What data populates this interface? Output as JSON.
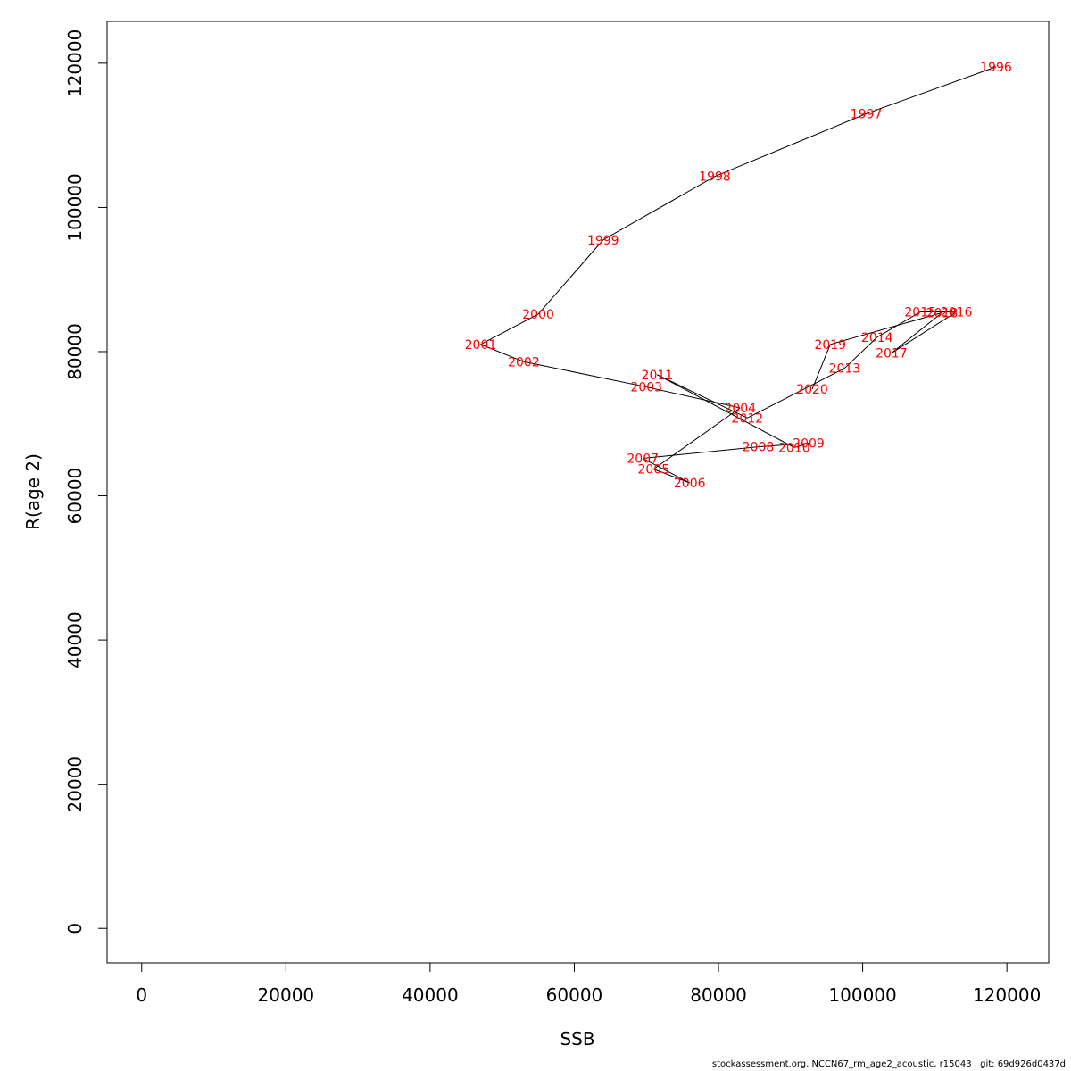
{
  "chart_data": {
    "type": "line",
    "xlabel": "SSB",
    "ylabel": "R(age 2)",
    "xlim": [
      -4800,
      125800
    ],
    "ylim": [
      -4800,
      125800
    ],
    "xticks": [
      0,
      20000,
      40000,
      60000,
      80000,
      100000,
      120000
    ],
    "yticks": [
      0,
      20000,
      40000,
      60000,
      80000,
      100000,
      120000
    ],
    "grid": false,
    "label_color": "#ff0000",
    "line_color": "#000000",
    "points": [
      {
        "label": "1996",
        "x": 118500,
        "y": 119500
      },
      {
        "label": "1997",
        "x": 100500,
        "y": 113000
      },
      {
        "label": "1998",
        "x": 79500,
        "y": 104300
      },
      {
        "label": "1999",
        "x": 64000,
        "y": 95500
      },
      {
        "label": "2000",
        "x": 55000,
        "y": 85200
      },
      {
        "label": "2001",
        "x": 47000,
        "y": 81000
      },
      {
        "label": "2002",
        "x": 53000,
        "y": 78600
      },
      {
        "label": "2003",
        "x": 70000,
        "y": 75100
      },
      {
        "label": "2004",
        "x": 83000,
        "y": 72200
      },
      {
        "label": "2005",
        "x": 71000,
        "y": 63700
      },
      {
        "label": "2006",
        "x": 76000,
        "y": 61800
      },
      {
        "label": "2007",
        "x": 69500,
        "y": 65200
      },
      {
        "label": "2008",
        "x": 85500,
        "y": 66800
      },
      {
        "label": "2009",
        "x": 92500,
        "y": 67300
      },
      {
        "label": "2010",
        "x": 90500,
        "y": 66700
      },
      {
        "label": "2011",
        "x": 71500,
        "y": 76800
      },
      {
        "label": "2012",
        "x": 84000,
        "y": 70800
      },
      {
        "label": "2013",
        "x": 97500,
        "y": 77700
      },
      {
        "label": "2014",
        "x": 102000,
        "y": 82000
      },
      {
        "label": "2015",
        "x": 108000,
        "y": 85500
      },
      {
        "label": "2016",
        "x": 113000,
        "y": 85500
      },
      {
        "label": "2017",
        "x": 104000,
        "y": 79800
      },
      {
        "label": "2018",
        "x": 111000,
        "y": 85400
      },
      {
        "label": "2019",
        "x": 95500,
        "y": 81000
      },
      {
        "label": "2020",
        "x": 93000,
        "y": 74800
      }
    ]
  },
  "footer": "stockassessment.org, NCCN67_rm_age2_acoustic, r15043 , git: 69d926d0437d"
}
